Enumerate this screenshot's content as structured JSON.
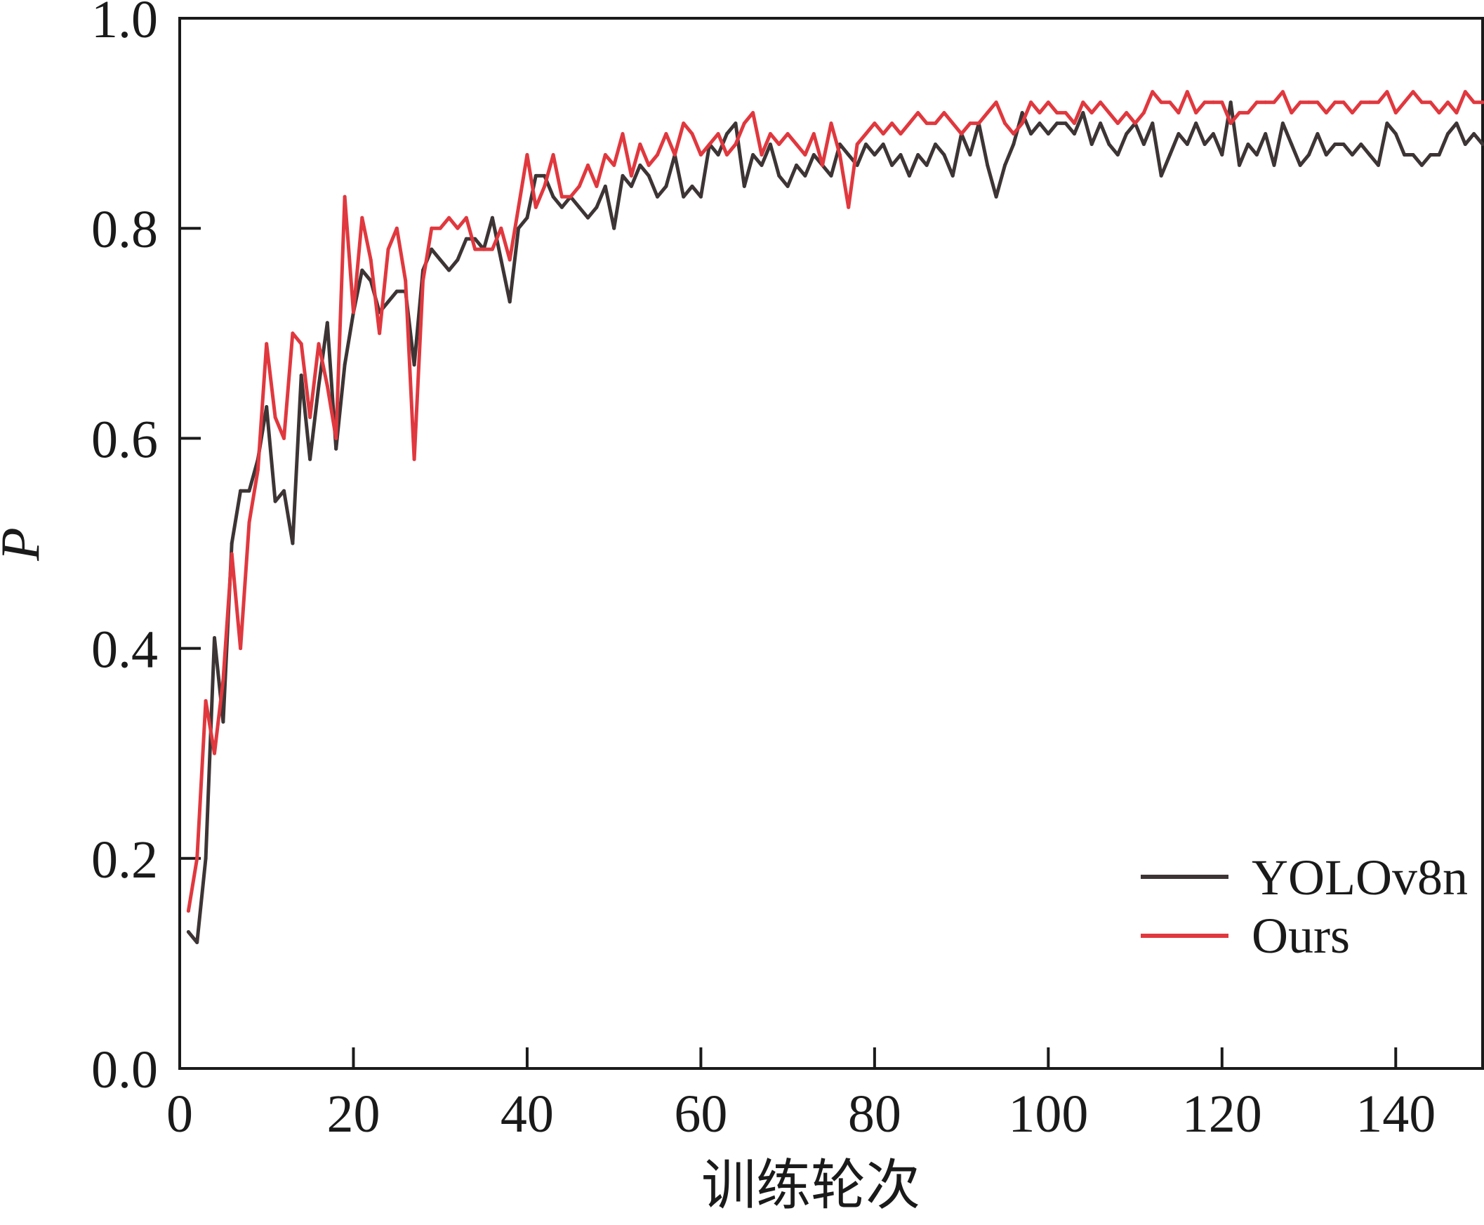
{
  "chart_data": {
    "type": "line",
    "xlabel": "训练轮次",
    "ylabel": "P",
    "xlim": [
      0,
      150
    ],
    "ylim": [
      0,
      1.0
    ],
    "x_ticks": [
      0,
      20,
      40,
      60,
      80,
      100,
      120,
      140
    ],
    "x_tick_labels": [
      "0",
      "20",
      "40",
      "60",
      "80",
      "100",
      "120",
      "140"
    ],
    "y_ticks": [
      0,
      0.2,
      0.4,
      0.6,
      0.8,
      1.0
    ],
    "y_tick_labels": [
      "0.0",
      "0.2",
      "0.4",
      "0.6",
      "0.8",
      "1.0"
    ],
    "grid": false,
    "legend_position": "bottom-right",
    "series": [
      {
        "name": "YOLOv8n",
        "color": "#3d3535",
        "x": [
          1,
          2,
          3,
          4,
          5,
          6,
          7,
          8,
          9,
          10,
          11,
          12,
          13,
          14,
          15,
          16,
          17,
          18,
          19,
          20,
          21,
          22,
          23,
          24,
          25,
          26,
          27,
          28,
          29,
          30,
          31,
          32,
          33,
          34,
          35,
          36,
          37,
          38,
          39,
          40,
          41,
          42,
          43,
          44,
          45,
          46,
          47,
          48,
          49,
          50,
          51,
          52,
          53,
          54,
          55,
          56,
          57,
          58,
          59,
          60,
          61,
          62,
          63,
          64,
          65,
          66,
          67,
          68,
          69,
          70,
          71,
          72,
          73,
          74,
          75,
          76,
          77,
          78,
          79,
          80,
          81,
          82,
          83,
          84,
          85,
          86,
          87,
          88,
          89,
          90,
          91,
          92,
          93,
          94,
          95,
          96,
          97,
          98,
          99,
          100,
          101,
          102,
          103,
          104,
          105,
          106,
          107,
          108,
          109,
          110,
          111,
          112,
          113,
          114,
          115,
          116,
          117,
          118,
          119,
          120,
          121,
          122,
          123,
          124,
          125,
          126,
          127,
          128,
          129,
          130,
          131,
          132,
          133,
          134,
          135,
          136,
          137,
          138,
          139,
          140,
          141,
          142,
          143,
          144,
          145,
          146,
          147,
          148,
          149,
          150
        ],
        "values": [
          0.13,
          0.12,
          0.2,
          0.41,
          0.33,
          0.5,
          0.55,
          0.55,
          0.58,
          0.63,
          0.54,
          0.55,
          0.5,
          0.66,
          0.58,
          0.65,
          0.71,
          0.59,
          0.67,
          0.72,
          0.76,
          0.75,
          0.72,
          0.73,
          0.74,
          0.74,
          0.67,
          0.76,
          0.78,
          0.77,
          0.76,
          0.77,
          0.79,
          0.79,
          0.78,
          0.81,
          0.77,
          0.73,
          0.8,
          0.81,
          0.85,
          0.85,
          0.83,
          0.82,
          0.83,
          0.82,
          0.81,
          0.82,
          0.84,
          0.8,
          0.85,
          0.84,
          0.86,
          0.85,
          0.83,
          0.84,
          0.87,
          0.83,
          0.84,
          0.83,
          0.88,
          0.87,
          0.89,
          0.9,
          0.84,
          0.87,
          0.86,
          0.88,
          0.85,
          0.84,
          0.86,
          0.85,
          0.87,
          0.86,
          0.85,
          0.88,
          0.87,
          0.86,
          0.88,
          0.87,
          0.88,
          0.86,
          0.87,
          0.85,
          0.87,
          0.86,
          0.88,
          0.87,
          0.85,
          0.89,
          0.87,
          0.9,
          0.86,
          0.83,
          0.86,
          0.88,
          0.91,
          0.89,
          0.9,
          0.89,
          0.9,
          0.9,
          0.89,
          0.91,
          0.88,
          0.9,
          0.88,
          0.87,
          0.89,
          0.9,
          0.88,
          0.9,
          0.85,
          0.87,
          0.89,
          0.88,
          0.9,
          0.88,
          0.89,
          0.87,
          0.92,
          0.86,
          0.88,
          0.87,
          0.89,
          0.86,
          0.9,
          0.88,
          0.86,
          0.87,
          0.89,
          0.87,
          0.88,
          0.88,
          0.87,
          0.88,
          0.87,
          0.86,
          0.9,
          0.89,
          0.87,
          0.87,
          0.86,
          0.87,
          0.87,
          0.89,
          0.9,
          0.88,
          0.89,
          0.88
        ]
      },
      {
        "name": "Ours",
        "color": "#e0383e",
        "x": [
          1,
          2,
          3,
          4,
          5,
          6,
          7,
          8,
          9,
          10,
          11,
          12,
          13,
          14,
          15,
          16,
          17,
          18,
          19,
          20,
          21,
          22,
          23,
          24,
          25,
          26,
          27,
          28,
          29,
          30,
          31,
          32,
          33,
          34,
          35,
          36,
          37,
          38,
          39,
          40,
          41,
          42,
          43,
          44,
          45,
          46,
          47,
          48,
          49,
          50,
          51,
          52,
          53,
          54,
          55,
          56,
          57,
          58,
          59,
          60,
          61,
          62,
          63,
          64,
          65,
          66,
          67,
          68,
          69,
          70,
          71,
          72,
          73,
          74,
          75,
          76,
          77,
          78,
          79,
          80,
          81,
          82,
          83,
          84,
          85,
          86,
          87,
          88,
          89,
          90,
          91,
          92,
          93,
          94,
          95,
          96,
          97,
          98,
          99,
          100,
          101,
          102,
          103,
          104,
          105,
          106,
          107,
          108,
          109,
          110,
          111,
          112,
          113,
          114,
          115,
          116,
          117,
          118,
          119,
          120,
          121,
          122,
          123,
          124,
          125,
          126,
          127,
          128,
          129,
          130,
          131,
          132,
          133,
          134,
          135,
          136,
          137,
          138,
          139,
          140,
          141,
          142,
          143,
          144,
          145,
          146,
          147,
          148,
          149,
          150
        ],
        "values": [
          0.15,
          0.2,
          0.35,
          0.3,
          0.37,
          0.49,
          0.4,
          0.52,
          0.57,
          0.69,
          0.62,
          0.6,
          0.7,
          0.69,
          0.62,
          0.69,
          0.65,
          0.6,
          0.83,
          0.72,
          0.81,
          0.77,
          0.7,
          0.78,
          0.8,
          0.75,
          0.58,
          0.75,
          0.8,
          0.8,
          0.81,
          0.8,
          0.81,
          0.78,
          0.78,
          0.78,
          0.8,
          0.77,
          0.82,
          0.87,
          0.82,
          0.84,
          0.87,
          0.83,
          0.83,
          0.84,
          0.86,
          0.84,
          0.87,
          0.86,
          0.89,
          0.85,
          0.88,
          0.86,
          0.87,
          0.89,
          0.87,
          0.9,
          0.89,
          0.87,
          0.88,
          0.89,
          0.87,
          0.88,
          0.9,
          0.91,
          0.87,
          0.89,
          0.88,
          0.89,
          0.88,
          0.87,
          0.89,
          0.86,
          0.9,
          0.87,
          0.82,
          0.88,
          0.89,
          0.9,
          0.89,
          0.9,
          0.89,
          0.9,
          0.91,
          0.9,
          0.9,
          0.91,
          0.9,
          0.89,
          0.9,
          0.9,
          0.91,
          0.92,
          0.9,
          0.89,
          0.9,
          0.92,
          0.91,
          0.92,
          0.91,
          0.91,
          0.9,
          0.92,
          0.91,
          0.92,
          0.91,
          0.9,
          0.91,
          0.9,
          0.91,
          0.93,
          0.92,
          0.92,
          0.91,
          0.93,
          0.91,
          0.92,
          0.92,
          0.92,
          0.9,
          0.91,
          0.91,
          0.92,
          0.92,
          0.92,
          0.93,
          0.91,
          0.92,
          0.92,
          0.92,
          0.91,
          0.92,
          0.92,
          0.91,
          0.92,
          0.92,
          0.92,
          0.93,
          0.91,
          0.92,
          0.93,
          0.92,
          0.92,
          0.91,
          0.92,
          0.91,
          0.93,
          0.92,
          0.92
        ]
      }
    ]
  }
}
